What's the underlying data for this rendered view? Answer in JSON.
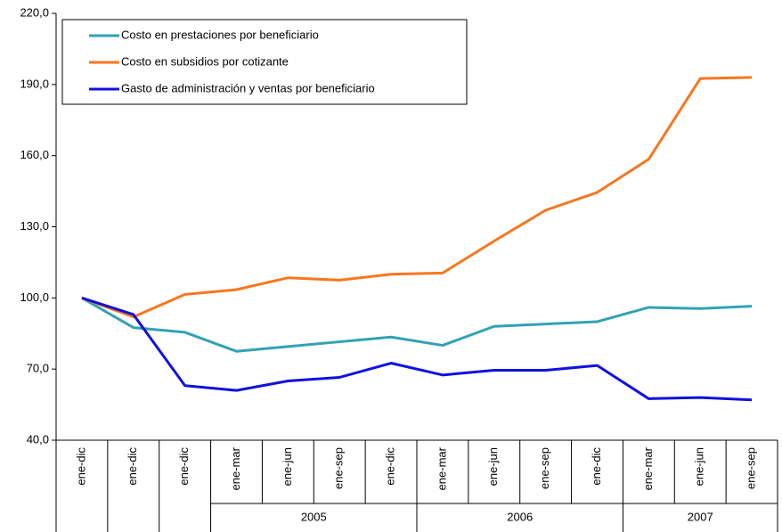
{
  "chart_data": {
    "type": "line",
    "categories": [
      "ene-dic",
      "ene-dic",
      "ene-dic",
      "ene-mar",
      "ene-jun",
      "ene-sep",
      "ene-dic",
      "ene-mar",
      "ene-jun",
      "ene-sep",
      "ene-dic",
      "ene-mar",
      "ene-jun",
      "ene-sep"
    ],
    "x_groups": [
      {
        "label": "2005",
        "from": 3,
        "to": 6
      },
      {
        "label": "2006",
        "from": 7,
        "to": 10
      },
      {
        "label": "2007",
        "from": 11,
        "to": 13
      }
    ],
    "series": [
      {
        "name": "Costo en prestaciones por beneficiario",
        "color": "#31a2b3",
        "values": [
          100,
          87.5,
          85.5,
          77.5,
          79.5,
          81.5,
          83.5,
          80,
          88,
          89,
          90,
          96,
          95.5,
          96.5
        ]
      },
      {
        "name": "Costo en subsidios por cotizante",
        "color": "#f7771f",
        "values": [
          100,
          92,
          101.5,
          103.5,
          108.5,
          107.5,
          110,
          110.5,
          124,
          137,
          144.5,
          158.5,
          192.5,
          193
        ]
      },
      {
        "name": "Gasto de administración y ventas por beneficiario",
        "color": "#1010e0",
        "values": [
          100,
          93,
          63,
          61,
          65,
          66.5,
          72.5,
          67.5,
          69.5,
          69.5,
          71.5,
          57.5,
          58,
          57
        ]
      }
    ],
    "ylim": [
      40,
      220
    ],
    "yticks": [
      {
        "value": 40,
        "label": "40,0"
      },
      {
        "value": 70,
        "label": "70,0"
      },
      {
        "value": 100,
        "label": "100,0"
      },
      {
        "value": 130,
        "label": "130,0"
      },
      {
        "value": 160,
        "label": "160,0"
      },
      {
        "value": 190,
        "label": "190,0"
      },
      {
        "value": 220,
        "label": "220,0"
      }
    ],
    "grid": false,
    "legend": "top-left"
  }
}
